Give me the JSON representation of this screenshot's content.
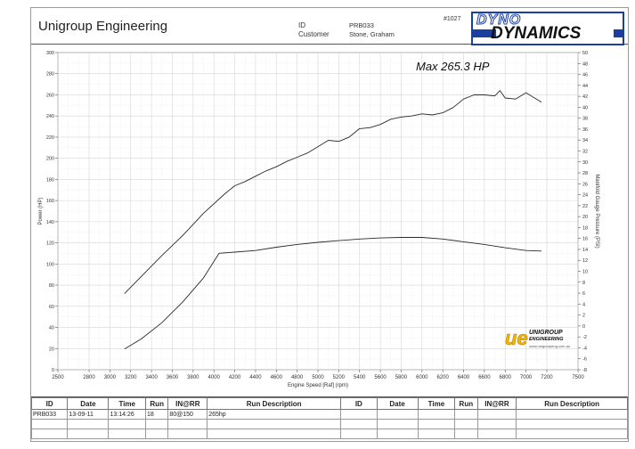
{
  "header": {
    "company": "Unigroup Engineering",
    "id_label": "ID",
    "customer_label": "Customer",
    "id_value": "PRB033",
    "customer_value": "Stone, Graham",
    "job_number": "#1027",
    "logo_line1": "DYNO",
    "logo_line2": "DYNAMICS"
  },
  "sponsor_logo": {
    "mark": "ue",
    "line1": "UNIGROUP",
    "line2": "ENGINEERING",
    "line3": "www.unigroupeng.com.au"
  },
  "colors": {
    "curve": "#2a2a2a",
    "grid": "#cfcfcf",
    "logo_blue": "#1b3fa0",
    "ue_yellow": "#f2b800"
  },
  "chart_data": {
    "type": "line",
    "title": "",
    "annotation": "Max 265.3 HP",
    "xlabel": "Engine Speed [Raf] (rpm)",
    "ylabel": "Power (HP)",
    "y2label": "Manifold Gauge Pressure (PSI)",
    "xlim": [
      2500,
      7500
    ],
    "ylim": [
      0,
      300
    ],
    "y2lim": [
      -8,
      50
    ],
    "xticks": [
      2500,
      2800,
      3000,
      3200,
      3400,
      3600,
      3800,
      4000,
      4200,
      4400,
      4600,
      4800,
      5000,
      5200,
      5400,
      5600,
      5800,
      6000,
      6200,
      6400,
      6600,
      6800,
      7000,
      7200,
      7500
    ],
    "yticks": [
      0,
      20,
      40,
      60,
      80,
      100,
      120,
      140,
      160,
      180,
      200,
      220,
      240,
      260,
      280,
      300
    ],
    "y2ticks": [
      -8,
      -6,
      -4,
      -2,
      0,
      2,
      4,
      6,
      8,
      10,
      12,
      14,
      16,
      18,
      20,
      22,
      24,
      26,
      28,
      30,
      32,
      34,
      36,
      38,
      40,
      42,
      44,
      46,
      48,
      50
    ],
    "grid": true,
    "series": [
      {
        "axis": "left",
        "x": [
          3140,
          3300,
          3500,
          3700,
          3900,
          4100,
          4200,
          4300,
          4400,
          4500,
          4600,
          4700,
          4800,
          4900,
          5000,
          5100,
          5200,
          5300,
          5400,
          5500,
          5600,
          5700,
          5800,
          5900,
          6000,
          6100,
          6200,
          6300,
          6400,
          6500,
          6600,
          6700,
          6750,
          6800,
          6900,
          7000,
          7100,
          7150
        ],
        "y": [
          72,
          88,
          108,
          127,
          148,
          166,
          174,
          178,
          183,
          188,
          192,
          197,
          201,
          205,
          211,
          217,
          216,
          220,
          228,
          229,
          232,
          237,
          239,
          240,
          242,
          241,
          243,
          248,
          256,
          260,
          260,
          259,
          264,
          257,
          256,
          262,
          256,
          253
        ]
      },
      {
        "axis": "right",
        "x": [
          3140,
          3300,
          3500,
          3700,
          3900,
          4050,
          4200,
          4400,
          4600,
          4800,
          5000,
          5200,
          5400,
          5600,
          5800,
          6000,
          6200,
          6400,
          6600,
          6800,
          7000,
          7150
        ],
        "y": [
          -4.2,
          -2.4,
          0.6,
          4.4,
          8.8,
          13.3,
          13.5,
          13.8,
          14.4,
          14.9,
          15.3,
          15.6,
          15.9,
          16.1,
          16.2,
          16.2,
          15.9,
          15.4,
          14.9,
          14.3,
          13.8,
          13.7
        ]
      }
    ]
  },
  "table": {
    "headers": [
      "ID",
      "Date",
      "Time",
      "Run",
      "IN@RR",
      "Run Description",
      "ID",
      "Date",
      "Time",
      "Run",
      "IN@RR",
      "Run Description"
    ],
    "rows": [
      [
        "PRB033",
        "13-09-11",
        "13:14:26",
        "18",
        "80@150",
        "265hp",
        "",
        "",
        "",
        "",
        "",
        ""
      ],
      [
        "",
        "",
        "",
        "",
        "",
        "",
        "",
        "",
        "",
        "",
        "",
        ""
      ],
      [
        "",
        "",
        "",
        "",
        "",
        "",
        "",
        "",
        "",
        "",
        "",
        ""
      ]
    ]
  }
}
